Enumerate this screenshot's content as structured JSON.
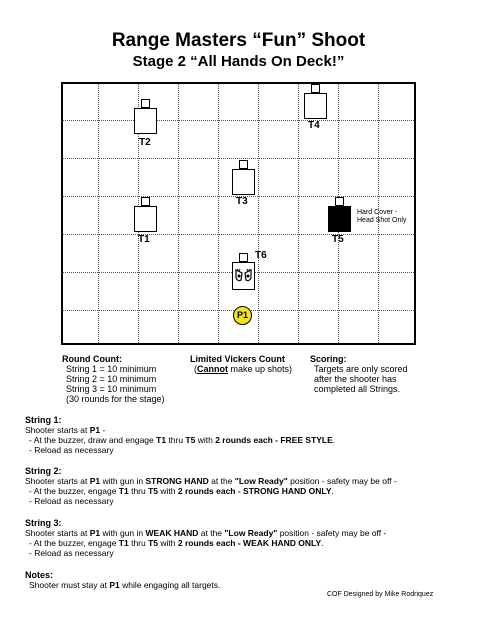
{
  "header": {
    "title": "Range Masters “Fun” Shoot",
    "subtitle": "Stage 2  “All Hands On Deck!”"
  },
  "diagram": {
    "targets": [
      "T1",
      "T2",
      "T3",
      "T4",
      "T5",
      "T6"
    ],
    "hard_cover_note_1": "Hard Cover -",
    "hard_cover_note_2": "Head Shot Only",
    "position": "P1"
  },
  "round_count": {
    "heading": "Round Count:",
    "lines": [
      "String 1 = 10 minimum",
      "String 2 = 10 minimum",
      "String 3 = 10 minimum",
      "(30 rounds for the stage)"
    ]
  },
  "vickers": {
    "heading": "Limited Vickers Count",
    "note_pre": "(",
    "note_bold": "Cannot",
    "note_post": " make up shots)"
  },
  "scoring": {
    "heading": "Scoring:",
    "lines": [
      "Targets are only scored",
      "after the shooter has",
      "completed all Strings."
    ]
  },
  "strings": {
    "s1": {
      "heading": "String 1:",
      "l1a": "Shooter starts at ",
      "l1b": "P1",
      "l1c": " -",
      "l2a": "- At the buzzer, draw and engage ",
      "l2b": "T1",
      "l2c": " thru ",
      "l2d": "T5",
      "l2e": " with ",
      "l2f": "2 rounds each - FREE STYLE",
      "l2g": ".",
      "l3": "- Reload as necessary"
    },
    "s2": {
      "heading": "String 2:",
      "l1a": "Shooter starts at ",
      "l1b": "P1",
      "l1c": " with gun in ",
      "l1d": "STRONG HAND",
      "l1e": " at the ",
      "l1f": "\"Low Ready\"",
      "l1g": " position - safety may be off -",
      "l2a": "- At the buzzer, engage ",
      "l2b": "T1",
      "l2c": " thru ",
      "l2d": "T5",
      "l2e": " with ",
      "l2f": "2 rounds each - STRONG HAND ONLY",
      "l2g": ".",
      "l3": "- Reload as necessary"
    },
    "s3": {
      "heading": "String 3:",
      "l1a": "Shooter starts at ",
      "l1b": "P1",
      "l1c": " with gun in ",
      "l1d": "WEAK HAND",
      "l1e": " at the ",
      "l1f": "\"Low Ready\"",
      "l1g": " position - safety may be off -",
      "l2a": "- At the buzzer, engage ",
      "l2b": "T1",
      "l2c": " thru ",
      "l2d": "T5",
      "l2e": " with ",
      "l2f": "2 rounds each - WEAK HAND ONLY",
      "l2g": ".",
      "l3": "- Reload as necessary"
    }
  },
  "notes": {
    "heading": "Notes:",
    "l1a": "Shooter must stay at ",
    "l1b": "P1",
    "l1c": " while engaging all targets."
  },
  "credit": "COF Designed by Mike Rodriquez"
}
